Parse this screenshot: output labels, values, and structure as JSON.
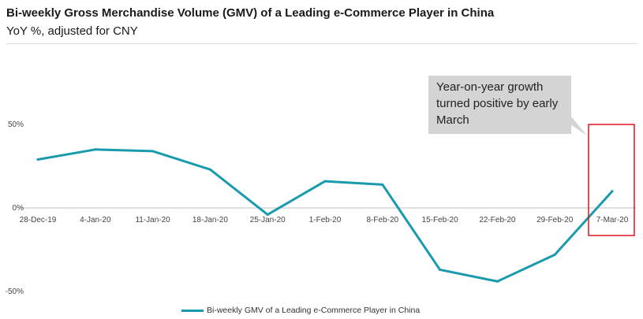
{
  "header": {
    "title": "Bi-weekly Gross Merchandise Volume (GMV) of a Leading e-Commerce Player in China",
    "subtitle": "YoY %, adjusted for CNY"
  },
  "callout": {
    "text": "Year-on-year growth turned positive by early March"
  },
  "colors": {
    "series": "#1a9bad",
    "highlight_box": "#e0141e",
    "callout_bg": "#d4d4d4"
  },
  "chart_data": {
    "type": "line",
    "title": "Bi-weekly Gross Merchandise Volume (GMV) of a Leading e-Commerce Player in China",
    "subtitle": "YoY %, adjusted for CNY",
    "categories": [
      "28-Dec-19",
      "4-Jan-20",
      "11-Jan-20",
      "18-Jan-20",
      "25-Jan-20",
      "1-Feb-20",
      "8-Feb-20",
      "15-Feb-20",
      "22-Feb-20",
      "29-Feb-20",
      "7-Mar-20"
    ],
    "series": [
      {
        "name": "Bi-weekly GMV of a Leading e-Commerce  Player in China",
        "values": [
          29,
          35,
          34,
          23,
          -4,
          16,
          14,
          -37,
          -44,
          -28,
          10
        ]
      }
    ],
    "yticks": [
      50,
      0,
      -50
    ],
    "yticklabels": [
      "50%",
      "0%",
      "-50%"
    ],
    "ylim": [
      -50,
      50
    ],
    "grid": false,
    "legend": "bottom",
    "annotation": "Year-on-year growth turned positive by early March",
    "highlight": "7-Mar-20"
  }
}
